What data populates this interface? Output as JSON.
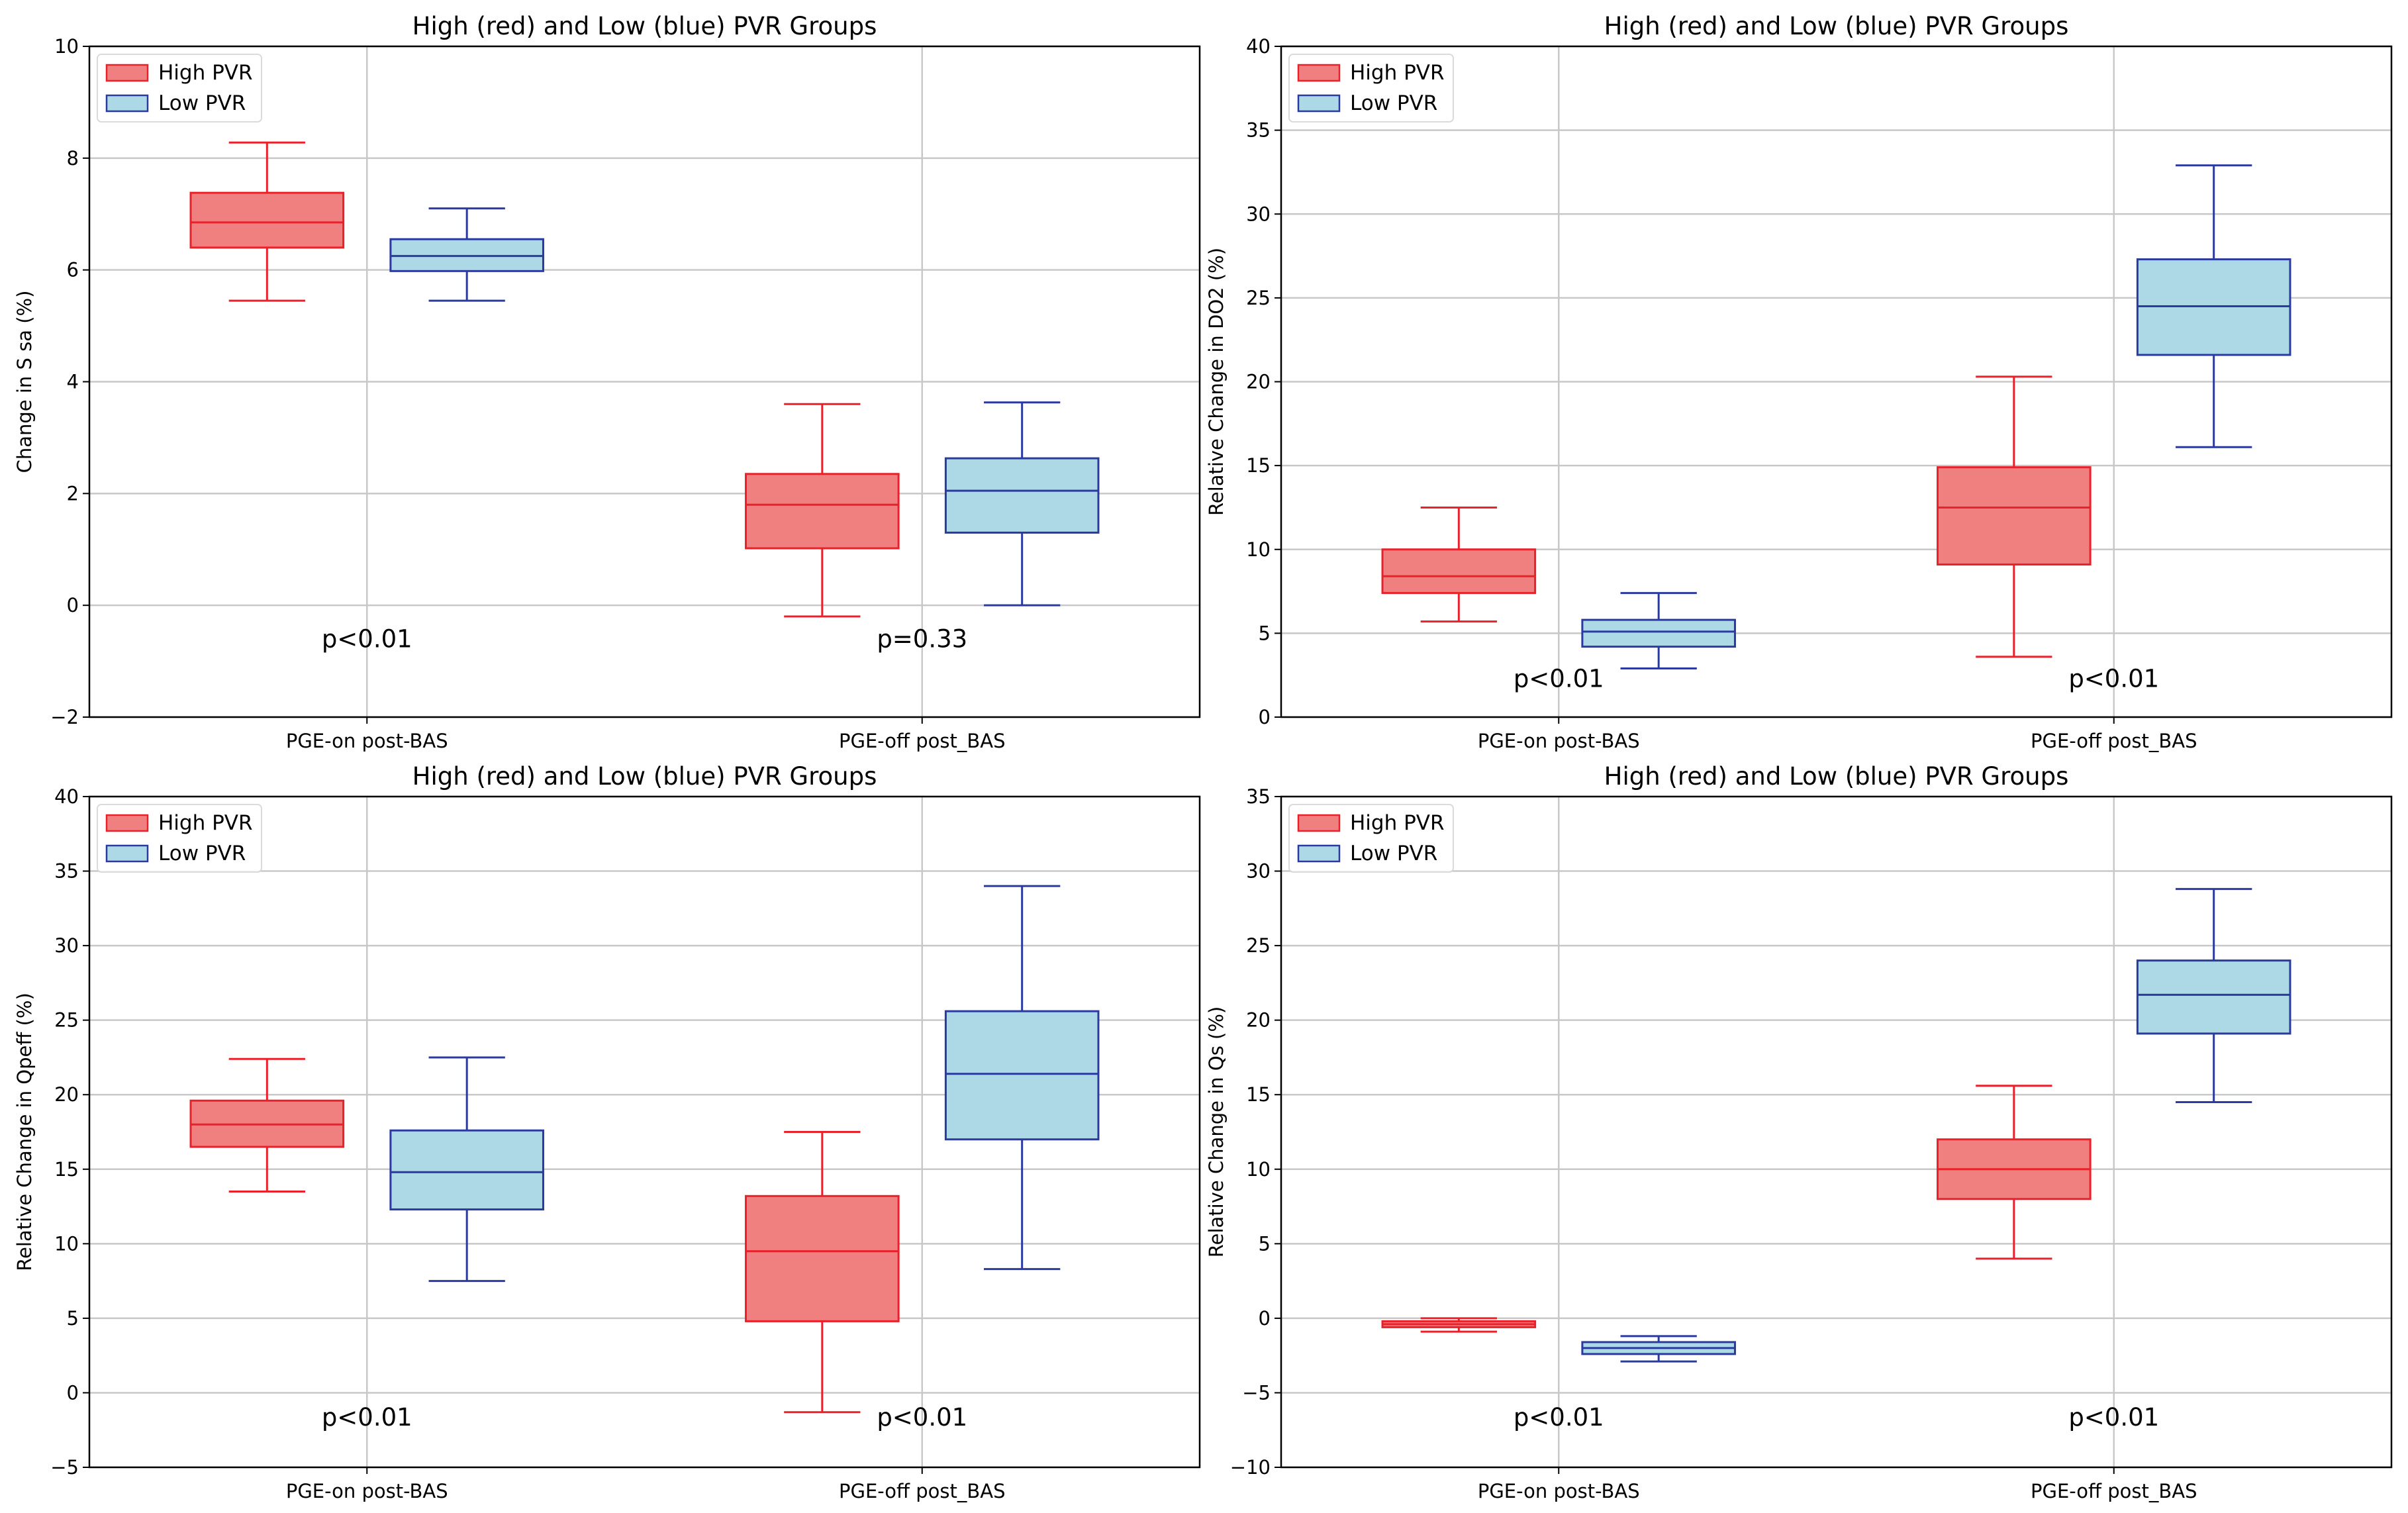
{
  "colors": {
    "high_fill": "#f08080",
    "high_edge": "#e8212b",
    "low_fill": "#add8e6",
    "low_edge": "#2b3a9e",
    "grid": "#c8c8c8"
  },
  "chart_data": [
    {
      "type": "box",
      "title": "High (red) and Low (blue) PVR Groups",
      "ylabel": "Change in S sa (%)",
      "xlabel": "",
      "ylim": [
        -2,
        10
      ],
      "yticks": [
        -2,
        0,
        2,
        4,
        6,
        8,
        10
      ],
      "ytick_labels": [
        "−2",
        "0",
        "2",
        "4",
        "6",
        "8",
        "10"
      ],
      "categories": [
        "PGE-on post-BAS",
        "PGE-off post_BAS"
      ],
      "legend": {
        "position": "top-left",
        "entries": [
          "High PVR",
          "Low PVR"
        ]
      },
      "grid": true,
      "series": [
        {
          "name": "High PVR",
          "boxes": [
            {
              "whislo": 5.45,
              "q1": 6.4,
              "med": 6.85,
              "q3": 7.38,
              "whishi": 8.28
            },
            {
              "whislo": -0.2,
              "q1": 1.02,
              "med": 1.8,
              "q3": 2.35,
              "whishi": 3.6
            }
          ]
        },
        {
          "name": "Low PVR",
          "boxes": [
            {
              "whislo": 5.45,
              "q1": 5.98,
              "med": 6.25,
              "q3": 6.55,
              "whishi": 7.1
            },
            {
              "whislo": 0.0,
              "q1": 1.3,
              "med": 2.05,
              "q3": 2.63,
              "whishi": 3.63
            }
          ]
        }
      ],
      "annotations": [
        {
          "text": "p<0.01",
          "category": 0,
          "y": -0.75
        },
        {
          "text": "p=0.33",
          "category": 1,
          "y": -0.75
        }
      ]
    },
    {
      "type": "box",
      "title": "High (red) and Low (blue) PVR Groups",
      "ylabel": "Relative Change in DO2 (%)",
      "xlabel": "",
      "ylim": [
        0,
        40
      ],
      "yticks": [
        0,
        5,
        10,
        15,
        20,
        25,
        30,
        35,
        40
      ],
      "ytick_labels": [
        "0",
        "5",
        "10",
        "15",
        "20",
        "25",
        "30",
        "35",
        "40"
      ],
      "categories": [
        "PGE-on post-BAS",
        "PGE-off post_BAS"
      ],
      "legend": {
        "position": "top-left",
        "entries": [
          "High PVR",
          "Low PVR"
        ]
      },
      "grid": true,
      "series": [
        {
          "name": "High PVR",
          "boxes": [
            {
              "whislo": 5.7,
              "q1": 7.4,
              "med": 8.4,
              "q3": 10.0,
              "whishi": 12.5
            },
            {
              "whislo": 3.6,
              "q1": 9.1,
              "med": 12.5,
              "q3": 14.9,
              "whishi": 20.3
            }
          ]
        },
        {
          "name": "Low PVR",
          "boxes": [
            {
              "whislo": 2.9,
              "q1": 4.2,
              "med": 5.1,
              "q3": 5.8,
              "whishi": 7.4
            },
            {
              "whislo": 16.1,
              "q1": 21.6,
              "med": 24.5,
              "q3": 27.3,
              "whishi": 32.9
            }
          ]
        }
      ],
      "annotations": [
        {
          "text": "p<0.01",
          "category": 0,
          "y": 1.8
        },
        {
          "text": "p<0.01",
          "category": 1,
          "y": 1.8
        }
      ]
    },
    {
      "type": "box",
      "title": "High (red) and Low (blue) PVR Groups",
      "ylabel": "Relative Change in Qpeff (%)",
      "xlabel": "",
      "ylim": [
        -5,
        40
      ],
      "yticks": [
        -5,
        0,
        5,
        10,
        15,
        20,
        25,
        30,
        35,
        40
      ],
      "ytick_labels": [
        "−5",
        "0",
        "5",
        "10",
        "15",
        "20",
        "25",
        "30",
        "35",
        "40"
      ],
      "categories": [
        "PGE-on post-BAS",
        "PGE-off post_BAS"
      ],
      "legend": {
        "position": "top-left",
        "entries": [
          "High PVR",
          "Low PVR"
        ]
      },
      "grid": true,
      "series": [
        {
          "name": "High PVR",
          "boxes": [
            {
              "whislo": 13.5,
              "q1": 16.5,
              "med": 18.0,
              "q3": 19.6,
              "whishi": 22.4
            },
            {
              "whislo": -1.3,
              "q1": 4.8,
              "med": 9.5,
              "q3": 13.2,
              "whishi": 17.5
            }
          ]
        },
        {
          "name": "Low PVR",
          "boxes": [
            {
              "whislo": 7.5,
              "q1": 12.3,
              "med": 14.8,
              "q3": 17.6,
              "whishi": 22.5
            },
            {
              "whislo": 8.3,
              "q1": 17.0,
              "med": 21.4,
              "q3": 25.6,
              "whishi": 34.0
            }
          ]
        }
      ],
      "annotations": [
        {
          "text": "p<0.01",
          "category": 0,
          "y": -2.2
        },
        {
          "text": "p<0.01",
          "category": 1,
          "y": -2.2
        }
      ]
    },
    {
      "type": "box",
      "title": "High (red) and Low (blue) PVR Groups",
      "ylabel": "Relative Change in Qs (%)",
      "xlabel": "",
      "ylim": [
        -10,
        35
      ],
      "yticks": [
        -10,
        -5,
        0,
        5,
        10,
        15,
        20,
        25,
        30,
        35
      ],
      "ytick_labels": [
        "−10",
        "−5",
        "0",
        "5",
        "10",
        "15",
        "20",
        "25",
        "30",
        "35"
      ],
      "categories": [
        "PGE-on post-BAS",
        "PGE-off post_BAS"
      ],
      "legend": {
        "position": "top-left",
        "entries": [
          "High PVR",
          "Low PVR"
        ]
      },
      "grid": true,
      "series": [
        {
          "name": "High PVR",
          "boxes": [
            {
              "whislo": -0.9,
              "q1": -0.6,
              "med": -0.4,
              "q3": -0.2,
              "whishi": 0.0
            },
            {
              "whislo": 4.0,
              "q1": 8.0,
              "med": 10.0,
              "q3": 12.0,
              "whishi": 15.6
            }
          ]
        },
        {
          "name": "Low PVR",
          "boxes": [
            {
              "whislo": -2.9,
              "q1": -2.4,
              "med": -2.0,
              "q3": -1.6,
              "whishi": -1.2
            },
            {
              "whislo": 14.5,
              "q1": 19.1,
              "med": 21.7,
              "q3": 24.0,
              "whishi": 28.8
            }
          ]
        }
      ],
      "annotations": [
        {
          "text": "p<0.01",
          "category": 0,
          "y": -7.2
        },
        {
          "text": "p<0.01",
          "category": 1,
          "y": -7.2
        }
      ]
    }
  ]
}
